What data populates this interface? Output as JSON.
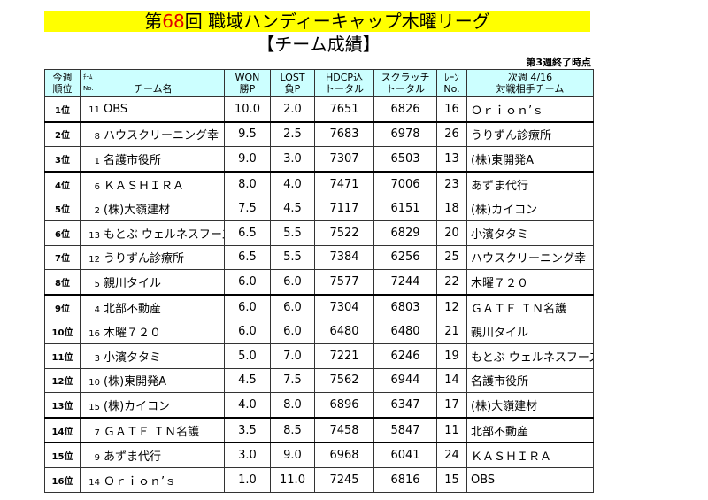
{
  "title": {
    "prefix": "第",
    "number": "68",
    "suffix": "回 職域ハンディーキャップ木曜リーグ"
  },
  "subtitle": "【チーム成績】",
  "as_of": "第3週終了時点",
  "headers": {
    "rank": [
      "今週",
      "順位"
    ],
    "team_no_small": "ﾁｰﾑ",
    "no": "No.",
    "team": "チーム名",
    "won": [
      "WON",
      "勝P"
    ],
    "lost": [
      "LOST",
      "負P"
    ],
    "hdcp": [
      "HDCP込",
      "トータル"
    ],
    "scratch": [
      "スクラッチ",
      "トータル"
    ],
    "lane": [
      "ﾚｰﾝ",
      "No."
    ],
    "next": [
      "次週 4/16",
      "対戦相手チーム"
    ]
  },
  "colors": {
    "title_bg": "#ffff00",
    "title_number": "#e00000",
    "header_bg": "#ccffff"
  },
  "rows": [
    {
      "rank": "1位",
      "no": "11",
      "team": "OBS",
      "won": "10.0",
      "lost": "2.0",
      "hdcp": "7651",
      "scratch": "6826",
      "lane": "16",
      "opponent": "Ｏｒｉｏｎ’ｓ"
    },
    {
      "rank": "2位",
      "no": "8",
      "team": "ハウスクリーニング幸",
      "won": "9.5",
      "lost": "2.5",
      "hdcp": "7683",
      "scratch": "6978",
      "lane": "26",
      "opponent": "うりずん診療所"
    },
    {
      "rank": "3位",
      "no": "1",
      "team": "名護市役所",
      "won": "9.0",
      "lost": "3.0",
      "hdcp": "7307",
      "scratch": "6503",
      "lane": "13",
      "opponent": "(株)東開発A"
    },
    {
      "rank": "4位",
      "no": "6",
      "team": "ＫＡＳＨＩＲＡ",
      "won": "8.0",
      "lost": "4.0",
      "hdcp": "7471",
      "scratch": "7006",
      "lane": "23",
      "opponent": "あずま代行"
    },
    {
      "rank": "5位",
      "no": "2",
      "team": "(株)大嶺建材",
      "won": "7.5",
      "lost": "4.5",
      "hdcp": "7117",
      "scratch": "6151",
      "lane": "18",
      "opponent": "(株)カイコン"
    },
    {
      "rank": "6位",
      "no": "13",
      "team": "もとぶ ウェルネスフーズ",
      "won": "6.5",
      "lost": "5.5",
      "hdcp": "7522",
      "scratch": "6829",
      "lane": "20",
      "opponent": "小濱タタミ"
    },
    {
      "rank": "7位",
      "no": "12",
      "team": "うりずん診療所",
      "won": "6.5",
      "lost": "5.5",
      "hdcp": "7384",
      "scratch": "6256",
      "lane": "25",
      "opponent": "ハウスクリーニング幸"
    },
    {
      "rank": "8位",
      "no": "5",
      "team": "親川タイル",
      "won": "6.0",
      "lost": "6.0",
      "hdcp": "7577",
      "scratch": "7244",
      "lane": "22",
      "opponent": "木曜７２０"
    },
    {
      "rank": "9位",
      "no": "4",
      "team": "北部不動産",
      "won": "6.0",
      "lost": "6.0",
      "hdcp": "7304",
      "scratch": "6803",
      "lane": "12",
      "opponent": "ＧＡＴＥ ＩＮ名護"
    },
    {
      "rank": "10位",
      "no": "16",
      "team": "木曜７２０",
      "won": "6.0",
      "lost": "6.0",
      "hdcp": "6480",
      "scratch": "6480",
      "lane": "21",
      "opponent": "親川タイル"
    },
    {
      "rank": "11位",
      "no": "3",
      "team": "小濱タタミ",
      "won": "5.0",
      "lost": "7.0",
      "hdcp": "7221",
      "scratch": "6246",
      "lane": "19",
      "opponent": "もとぶ ウェルネスフーズ"
    },
    {
      "rank": "12位",
      "no": "10",
      "team": "(株)東開発A",
      "won": "4.5",
      "lost": "7.5",
      "hdcp": "7562",
      "scratch": "6944",
      "lane": "14",
      "opponent": "名護市役所"
    },
    {
      "rank": "13位",
      "no": "15",
      "team": "(株)カイコン",
      "won": "4.0",
      "lost": "8.0",
      "hdcp": "6896",
      "scratch": "6347",
      "lane": "17",
      "opponent": "(株)大嶺建材"
    },
    {
      "rank": "14位",
      "no": "7",
      "team": "ＧＡＴＥ ＩＮ名護",
      "won": "3.5",
      "lost": "8.5",
      "hdcp": "7458",
      "scratch": "5847",
      "lane": "11",
      "opponent": "北部不動産"
    },
    {
      "rank": "15位",
      "no": "9",
      "team": "あずま代行",
      "won": "3.0",
      "lost": "9.0",
      "hdcp": "6968",
      "scratch": "6041",
      "lane": "24",
      "opponent": "ＫＡＳＨＩＲＡ"
    },
    {
      "rank": "16位",
      "no": "14",
      "team": "Ｏｒｉｏｎ’ｓ",
      "won": "1.0",
      "lost": "11.0",
      "hdcp": "7245",
      "scratch": "6816",
      "lane": "15",
      "opponent": "OBS"
    }
  ]
}
